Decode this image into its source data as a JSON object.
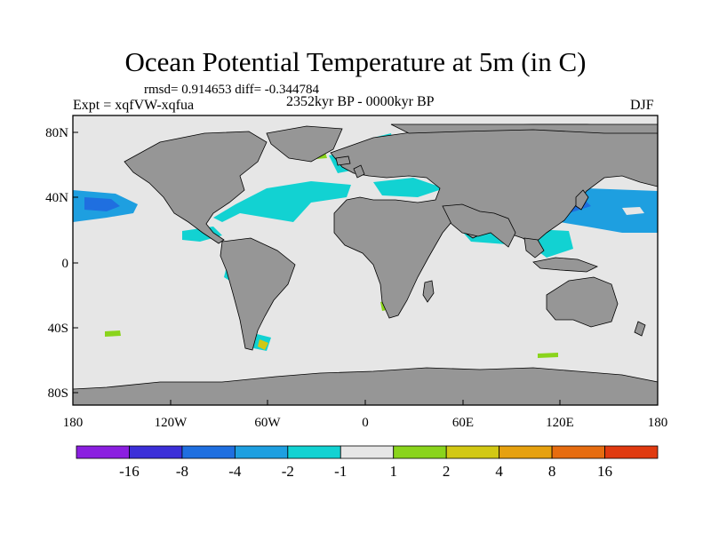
{
  "title": "Ocean Potential Temperature at 5m (in C)",
  "stats": "rmsd= 0.914653 diff= -0.344784",
  "experiment": "Expt = xqfVW-xqfua",
  "period": "2352kyr BP - 0000kyr BP",
  "season": "DJF",
  "axes": {
    "y_ticks": [
      "80N",
      "40N",
      "0",
      "40S",
      "80S"
    ],
    "x_ticks": [
      "180",
      "120W",
      "60W",
      "0",
      "60E",
      "120E",
      "180"
    ]
  },
  "colorbar": {
    "labels": [
      "-16",
      "-8",
      "-4",
      "-2",
      "-1",
      "1",
      "2",
      "4",
      "8",
      "16"
    ],
    "colors": [
      "#8b1fe0",
      "#3c2fd8",
      "#1f6fe0",
      "#1e9fe0",
      "#12d2d2",
      "#e6e6e6",
      "#8ad41c",
      "#d2c814",
      "#e6a10f",
      "#e66c10",
      "#e03a10"
    ]
  },
  "map_colors": {
    "ocean": "#e6e6e6",
    "land": "#969696",
    "coast": "#000000"
  }
}
